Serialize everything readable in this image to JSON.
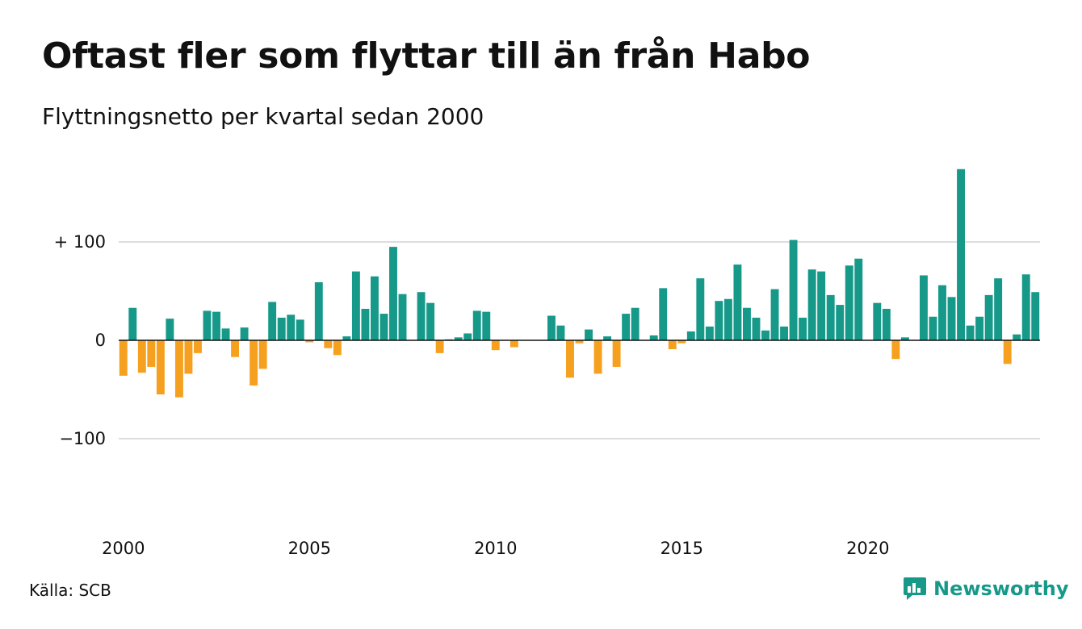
{
  "title": "Oftast fler som flyttar till än från Habo",
  "subtitle": "Flyttningsnetto per kvartal sedan 2000",
  "source": "Källa: SCB",
  "brand": {
    "name": "Newsworthy",
    "icon": "bar-chart-logo-icon"
  },
  "colors": {
    "positive": "#17998a",
    "negative": "#f5a11f",
    "grid": "#dddddd",
    "text": "#111111"
  },
  "chart_data": {
    "type": "bar",
    "x_unit": "quarter",
    "start": "2000-Q1",
    "x_tick_labels": [
      "2000",
      "2005",
      "2010",
      "2015",
      "2020"
    ],
    "y_tick_labels": [
      "+ 100",
      "0",
      "−100"
    ],
    "y_ticks": [
      100,
      0,
      -100
    ],
    "ylim": [
      -150,
      180
    ],
    "grid": true,
    "legend": "none",
    "values": [
      -36,
      33,
      -33,
      -27,
      -55,
      22,
      -58,
      -34,
      -13,
      30,
      29,
      12,
      -17,
      13,
      -46,
      -29,
      39,
      23,
      26,
      21,
      -2,
      59,
      -8,
      -15,
      4,
      70,
      32,
      65,
      27,
      95,
      47,
      0,
      49,
      38,
      -13,
      1,
      3,
      7,
      30,
      29,
      -10,
      0,
      -7,
      0,
      0,
      0,
      25,
      15,
      -38,
      -3,
      11,
      -34,
      4,
      -27,
      27,
      33,
      0,
      5,
      53,
      -9,
      -3,
      9,
      63,
      14,
      40,
      42,
      77,
      33,
      23,
      10,
      52,
      14,
      102,
      23,
      72,
      70,
      46,
      36,
      76,
      83,
      0,
      38,
      32,
      -19,
      3,
      0,
      66,
      24,
      56,
      44,
      174,
      15,
      24,
      46,
      63,
      -24,
      6,
      67,
      49
    ]
  }
}
